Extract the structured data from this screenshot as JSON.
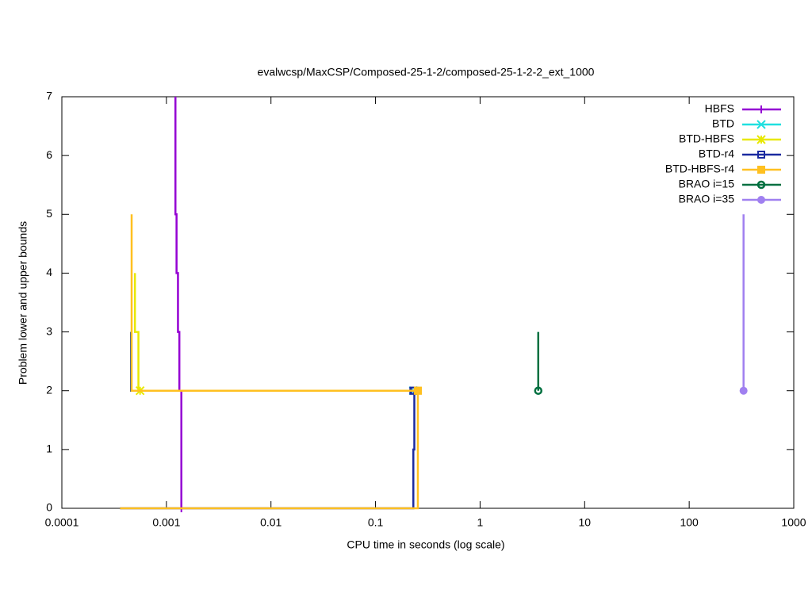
{
  "chart_data": {
    "type": "line",
    "title": "evalwcsp/MaxCSP/Composed-25-1-2/composed-25-1-2-2_ext_1000",
    "x_label": "CPU time in seconds (log scale)",
    "y_label": "Problem lower and upper bounds",
    "xscale": "log",
    "xlim": [
      0.0001,
      1000
    ],
    "ylim": [
      0,
      7
    ],
    "xticks": [
      0.0001,
      0.001,
      0.01,
      0.1,
      1,
      10,
      100,
      1000
    ],
    "yticks": [
      0,
      1,
      2,
      3,
      4,
      5,
      6,
      7
    ],
    "legend": "top-right",
    "series": [
      {
        "name": "HBFS",
        "color": "#9400d3",
        "marker": "plus",
        "x": [
          0.00122,
          0.00122,
          0.00125,
          0.00125,
          0.00129,
          0.00129,
          0.00133,
          0.00133,
          0.00139,
          0.00139
        ],
        "values": [
          7,
          5,
          5,
          4,
          4,
          3,
          3,
          2,
          2,
          0
        ]
      },
      {
        "name": "BTD",
        "color": "#20e0e0",
        "marker": "cross",
        "x": [
          0.00046,
          0.00046,
          0.23
        ],
        "values": [
          3,
          2,
          2
        ]
      },
      {
        "name": "BTD-HBFS",
        "color": "#e8e800",
        "marker": "star",
        "x": [
          0.0005,
          0.0005,
          0.00054,
          0.00054,
          0.00056
        ],
        "values": [
          4,
          3,
          3,
          2,
          2
        ]
      },
      {
        "name": "BTD-r4",
        "color": "#1a2aa0",
        "marker": "square-open",
        "x": [
          0.00046,
          0.00046,
          0.23,
          null,
          0.00036,
          0.23,
          0.23,
          0.235,
          0.235
        ],
        "values": [
          3,
          2,
          2,
          null,
          0,
          0,
          1,
          1,
          2
        ]
      },
      {
        "name": "BTD-HBFS-r4",
        "color": "#ffc020",
        "marker": "square",
        "x": [
          0.000465,
          0.000465,
          0.254,
          null,
          0.00036,
          0.254,
          0.254
        ],
        "values": [
          5,
          2,
          2,
          null,
          0,
          0,
          2
        ]
      },
      {
        "name": "BRAO i=15",
        "color": "#007040",
        "marker": "circle-open",
        "x": [
          3.6,
          3.6
        ],
        "values": [
          3,
          2
        ]
      },
      {
        "name": "BRAO i=35",
        "color": "#a080f0",
        "marker": "circle",
        "x": [
          331,
          331
        ],
        "values": [
          5,
          2
        ]
      }
    ]
  }
}
